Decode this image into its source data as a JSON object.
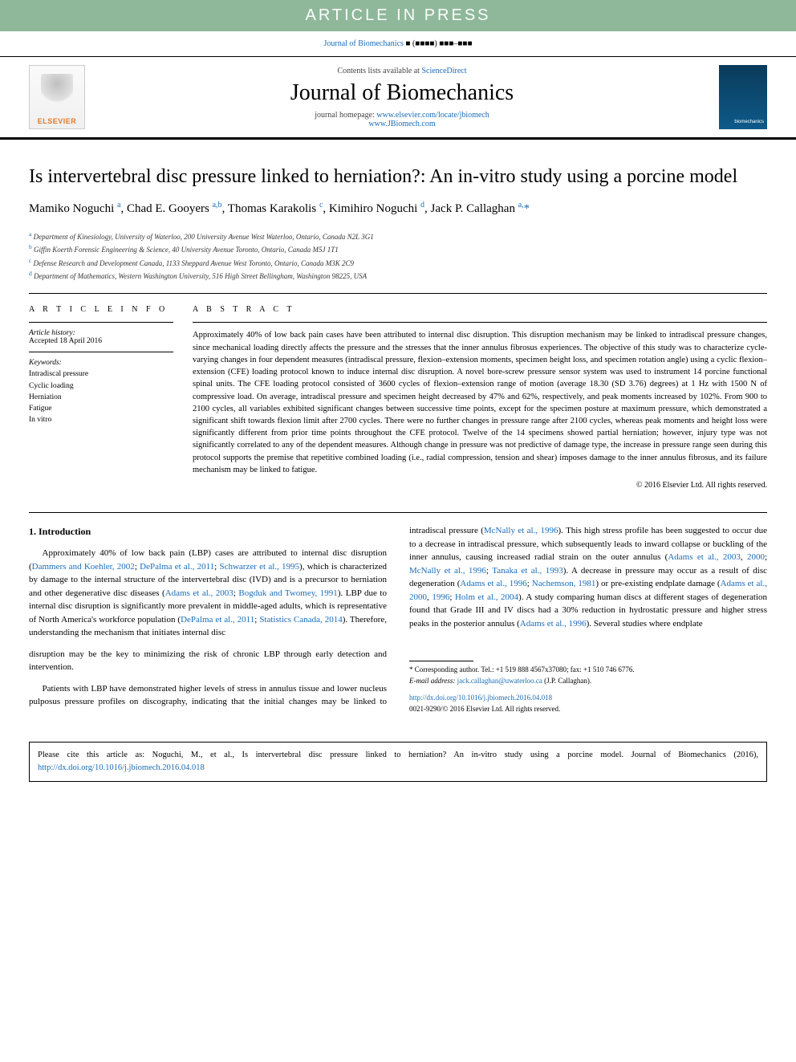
{
  "banner": {
    "text": "ARTICLE IN PRESS",
    "bg": "#8fb89b",
    "fg": "#fcfcfc"
  },
  "journal_ref": {
    "journal": "Journal of Biomechanics",
    "placeholder": "■ (■■■■) ■■■–■■■"
  },
  "masthead": {
    "contents_prefix": "Contents lists available at ",
    "contents_link": "ScienceDirect",
    "journal_name": "Journal of Biomechanics",
    "homepage_label": "journal homepage: ",
    "homepage_url1": "www.elsevier.com/locate/jbiomech",
    "homepage_url2": "www.JBiomech.com",
    "publisher": "ELSEVIER"
  },
  "article": {
    "title": "Is intervertebral disc pressure linked to herniation?: An in-vitro study using a porcine model",
    "authors_html": "Mamiko Noguchi <sup>a</sup>, Chad E. Gooyers <sup>a,b</sup>, Thomas Karakolis <sup>c</sup>, Kimihiro Noguchi <sup>d</sup>, Jack P. Callaghan <sup>a,</sup><span class='corr'>*</span>",
    "affiliations": [
      {
        "sup": "a",
        "text": "Department of Kinesiology, University of Waterloo, 200 University Avenue West Waterloo, Ontario, Canada N2L 3G1"
      },
      {
        "sup": "b",
        "text": "Giffin Koerth Forensic Engineering & Science, 40 University Avenue Toronto, Ontario, Canada M5J 1T1"
      },
      {
        "sup": "c",
        "text": "Defense Research and Development Canada, 1133 Sheppard Avenue West Toronto, Ontario, Canada M3K 2C9"
      },
      {
        "sup": "d",
        "text": "Department of Mathematics, Western Washington University, 516 High Street Bellingham, Washington 98225, USA"
      }
    ]
  },
  "info": {
    "heading": "A R T I C L E  I N F O",
    "history_label": "Article history:",
    "accepted": "Accepted 18 April 2016",
    "keywords_label": "Keywords:",
    "keywords": [
      "Intradiscal pressure",
      "Cyclic loading",
      "Herniation",
      "Fatigue",
      "In vitro"
    ]
  },
  "abstract": {
    "heading": "A B S T R A C T",
    "text": "Approximately 40% of low back pain cases have been attributed to internal disc disruption. This disruption mechanism may be linked to intradiscal pressure changes, since mechanical loading directly affects the pressure and the stresses that the inner annulus fibrosus experiences. The objective of this study was to characterize cycle-varying changes in four dependent measures (intradiscal pressure, flexion–extension moments, specimen height loss, and specimen rotation angle) using a cyclic flexion–extension (CFE) loading protocol known to induce internal disc disruption. A novel bore-screw pressure sensor system was used to instrument 14 porcine functional spinal units. The CFE loading protocol consisted of 3600 cycles of flexion–extension range of motion (average 18.30 (SD 3.76) degrees) at 1 Hz with 1500 N of compressive load. On average, intradiscal pressure and specimen height decreased by 47% and 62%, respectively, and peak moments increased by 102%. From 900 to 2100 cycles, all variables exhibited significant changes between successive time points, except for the specimen posture at maximum pressure, which demonstrated a significant shift towards flexion limit after 2700 cycles. There were no further changes in pressure range after 2100 cycles, whereas peak moments and height loss were significantly different from prior time points throughout the CFE protocol. Twelve of the 14 specimens showed partial herniation; however, injury type was not significantly correlated to any of the dependent measures. Although change in pressure was not predictive of damage type, the increase in pressure range seen during this protocol supports the premise that repetitive combined loading (i.e., radial compression, tension and shear) imposes damage to the inner annulus fibrosus, and its failure mechanism may be linked to fatigue.",
    "copyright": "© 2016 Elsevier Ltd. All rights reserved."
  },
  "body": {
    "section_heading": "1.  Introduction",
    "p1": "Approximately 40% of low back pain (LBP) cases are attributed to internal disc disruption (<a>Dammers and Koehler, 2002</a>; <a>DePalma et al., 2011</a>; <a>Schwarzer et al., 1995</a>), which is characterized by damage to the internal structure of the intervertebral disc (IVD) and is a precursor to herniation and other degenerative disc diseases (<a>Adams et al., 2003</a>; <a>Bogduk and Twomey, 1991</a>). LBP due to internal disc disruption is significantly more prevalent in middle-aged adults, which is representative of North America's workforce population (<a>DePalma et al., 2011</a>; <a>Statistics Canada, 2014</a>). Therefore, understanding the mechanism that initiates internal disc",
    "p2": "disruption may be the key to minimizing the risk of chronic LBP through early detection and intervention.",
    "p3": "Patients with LBP have demonstrated higher levels of stress in annulus tissue and lower nucleus pulposus pressure profiles on discography, indicating that the initial changes may be linked to intradiscal pressure (<a>McNally et al., 1996</a>). This high stress profile has been suggested to occur due to a decrease in intradiscal pressure, which subsequently leads to inward collapse or buckling of the inner annulus, causing increased radial strain on the outer annulus (<a>Adams et al., 2003</a>, <a>2000</a>; <a>McNally et al., 1996</a>; <a>Tanaka et al., 1993</a>). A decrease in pressure may occur as a result of disc degeneration (<a>Adams et al., 1996</a>; <a>Nachemson, 1981</a>) or pre-existing endplate damage (<a>Adams et al., 2000</a>, <a>1996</a>; <a>Holm et al., 2004</a>). A study comparing human discs at different stages of degeneration found that Grade III and IV discs had a 30% reduction in hydrostatic pressure and higher stress peaks in the posterior annulus (<a>Adams et al., 1996</a>). Several studies where endplate"
  },
  "footer": {
    "corr_note": "* Corresponding author. Tel.: +1 519 888 4567x37080; fax: +1 510 746 6776.",
    "email_label": "E-mail address: ",
    "email": "jack.callaghan@uwaterloo.ca",
    "email_suffix": " (J.P. Callaghan).",
    "doi": "http://dx.doi.org/10.1016/j.jbiomech.2016.04.018",
    "issn": "0021-9290/© 2016 Elsevier Ltd. All rights reserved."
  },
  "citation": {
    "text": "Please cite this article as: Noguchi, M., et al., Is intervertebral disc pressure linked to herniation? An in-vitro study using a porcine model. Journal of Biomechanics (2016), ",
    "link": "http://dx.doi.org/10.1016/j.jbiomech.2016.04.018"
  },
  "colors": {
    "link": "#1a6cb8",
    "banner_bg": "#8fb89b",
    "banner_fg": "#fcfcfc",
    "publisher_orange": "#e87722",
    "cover_top": "#0a3a5a",
    "cover_bottom": "#0d5a8a"
  },
  "typography": {
    "title_pt": 24,
    "authors_pt": 15,
    "affil_pt": 9,
    "abstract_pt": 10.5,
    "body_pt": 11,
    "footer_pt": 9
  }
}
